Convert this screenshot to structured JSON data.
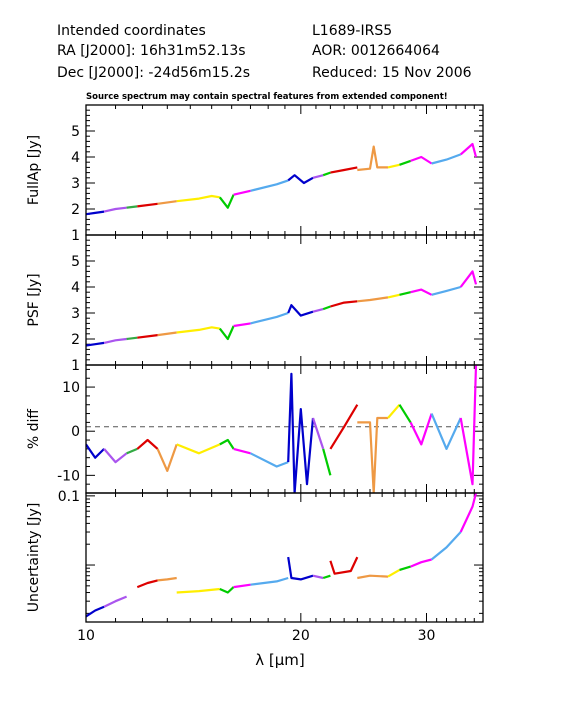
{
  "header": {
    "left": [
      "Intended coordinates",
      "RA  [J2000]: 16h31m52.13s",
      "Dec [J2000]: -24d56m15.2s"
    ],
    "right": [
      "L1689-IRS5",
      "AOR:  0012664064",
      "Reduced: 15 Nov 2006"
    ],
    "note": "Source spectrum may contain spectral features from extended component!"
  },
  "chart_data": [
    {
      "type": "line",
      "ylabel": "FullAp [Jy]",
      "xlim": [
        10,
        36
      ],
      "ylim": [
        1,
        6
      ],
      "yticks": [
        1,
        2,
        3,
        4,
        5
      ],
      "xscale": "log",
      "series": [
        {
          "color": "#0000cc",
          "x": [
            10.0,
            10.3,
            10.6
          ],
          "y": [
            1.8,
            1.85,
            1.9
          ]
        },
        {
          "color": "#aa55ee",
          "x": [
            10.6,
            11.0,
            11.4
          ],
          "y": [
            1.9,
            2.0,
            2.05
          ]
        },
        {
          "color": "#33aa44",
          "x": [
            11.4,
            11.8
          ],
          "y": [
            2.05,
            2.1
          ]
        },
        {
          "color": "#dd0000",
          "x": [
            11.8,
            12.6
          ],
          "y": [
            2.1,
            2.2
          ]
        },
        {
          "color": "#ee9944",
          "x": [
            12.6,
            13.4
          ],
          "y": [
            2.2,
            2.3
          ]
        },
        {
          "color": "#ffee00",
          "x": [
            13.4,
            14.4,
            15.0,
            15.4
          ],
          "y": [
            2.3,
            2.4,
            2.5,
            2.45
          ]
        },
        {
          "color": "#00cc00",
          "x": [
            15.4,
            15.8,
            16.1
          ],
          "y": [
            2.45,
            2.05,
            2.55
          ]
        },
        {
          "color": "#ff00ff",
          "x": [
            16.1,
            17.0
          ],
          "y": [
            2.55,
            2.7
          ]
        },
        {
          "color": "#55aaee",
          "x": [
            17.0,
            18.5,
            19.2
          ],
          "y": [
            2.7,
            2.95,
            3.1
          ]
        },
        {
          "color": "#0000cc",
          "x": [
            19.2,
            19.6,
            20.2,
            20.8
          ],
          "y": [
            3.1,
            3.3,
            3.0,
            3.2
          ]
        },
        {
          "color": "#aa55ee",
          "x": [
            20.8,
            21.5
          ],
          "y": [
            3.2,
            3.3
          ]
        },
        {
          "color": "#00cc00",
          "x": [
            21.5,
            22.0
          ],
          "y": [
            3.3,
            3.4
          ]
        },
        {
          "color": "#dd0000",
          "x": [
            22.0,
            23.0,
            24.0
          ],
          "y": [
            3.4,
            3.5,
            3.6
          ]
        },
        {
          "color": "#ee9944",
          "x": [
            24.0,
            25.0,
            25.3,
            25.6,
            26.5
          ],
          "y": [
            3.5,
            3.55,
            4.4,
            3.6,
            3.6
          ]
        },
        {
          "color": "#ffee00",
          "x": [
            26.5,
            27.5
          ],
          "y": [
            3.6,
            3.7
          ]
        },
        {
          "color": "#00cc00",
          "x": [
            27.5,
            28.5
          ],
          "y": [
            3.7,
            3.85
          ]
        },
        {
          "color": "#ff00ff",
          "x": [
            28.5,
            29.5,
            30.5
          ],
          "y": [
            3.85,
            4.0,
            3.75
          ]
        },
        {
          "color": "#55aaee",
          "x": [
            30.5,
            32.0,
            33.5
          ],
          "y": [
            3.75,
            3.9,
            4.1
          ]
        },
        {
          "color": "#ff00ff",
          "x": [
            33.5,
            34.8,
            35.2
          ],
          "y": [
            4.1,
            4.5,
            4.0
          ]
        }
      ]
    },
    {
      "type": "line",
      "ylabel": "PSF [Jy]",
      "xlim": [
        10,
        36
      ],
      "ylim": [
        1,
        6
      ],
      "yticks": [
        1,
        2,
        3,
        4,
        5
      ],
      "xscale": "log",
      "series": [
        {
          "color": "#0000cc",
          "x": [
            10.0,
            10.3,
            10.6
          ],
          "y": [
            1.75,
            1.8,
            1.85
          ]
        },
        {
          "color": "#aa55ee",
          "x": [
            10.6,
            11.0,
            11.4
          ],
          "y": [
            1.85,
            1.95,
            2.0
          ]
        },
        {
          "color": "#33aa44",
          "x": [
            11.4,
            11.8
          ],
          "y": [
            2.0,
            2.05
          ]
        },
        {
          "color": "#dd0000",
          "x": [
            11.8,
            12.6
          ],
          "y": [
            2.05,
            2.15
          ]
        },
        {
          "color": "#ee9944",
          "x": [
            12.6,
            13.4
          ],
          "y": [
            2.15,
            2.25
          ]
        },
        {
          "color": "#ffee00",
          "x": [
            13.4,
            14.4,
            15.0,
            15.4
          ],
          "y": [
            2.25,
            2.35,
            2.45,
            2.4
          ]
        },
        {
          "color": "#00cc00",
          "x": [
            15.4,
            15.8,
            16.1
          ],
          "y": [
            2.4,
            2.0,
            2.5
          ]
        },
        {
          "color": "#ff00ff",
          "x": [
            16.1,
            17.0
          ],
          "y": [
            2.5,
            2.6
          ]
        },
        {
          "color": "#55aaee",
          "x": [
            17.0,
            18.5,
            19.2
          ],
          "y": [
            2.6,
            2.85,
            3.0
          ]
        },
        {
          "color": "#0000cc",
          "x": [
            19.2,
            19.4,
            20.0,
            20.8
          ],
          "y": [
            3.0,
            3.3,
            2.9,
            3.05
          ]
        },
        {
          "color": "#aa55ee",
          "x": [
            20.8,
            21.5
          ],
          "y": [
            3.05,
            3.15
          ]
        },
        {
          "color": "#00cc00",
          "x": [
            21.5,
            22.0
          ],
          "y": [
            3.15,
            3.25
          ]
        },
        {
          "color": "#dd0000",
          "x": [
            22.0,
            23.0,
            24.0
          ],
          "y": [
            3.25,
            3.4,
            3.45
          ]
        },
        {
          "color": "#ee9944",
          "x": [
            24.0,
            25.0,
            26.5
          ],
          "y": [
            3.45,
            3.5,
            3.6
          ]
        },
        {
          "color": "#ffee00",
          "x": [
            26.5,
            27.5
          ],
          "y": [
            3.6,
            3.7
          ]
        },
        {
          "color": "#00cc00",
          "x": [
            27.5,
            28.5
          ],
          "y": [
            3.7,
            3.8
          ]
        },
        {
          "color": "#ff00ff",
          "x": [
            28.5,
            29.5,
            30.5
          ],
          "y": [
            3.8,
            3.9,
            3.7
          ]
        },
        {
          "color": "#55aaee",
          "x": [
            30.5,
            32.0,
            33.5
          ],
          "y": [
            3.7,
            3.85,
            4.0
          ]
        },
        {
          "color": "#ff00ff",
          "x": [
            33.5,
            34.8,
            35.2
          ],
          "y": [
            4.0,
            4.6,
            4.1
          ]
        }
      ]
    },
    {
      "type": "line",
      "ylabel": "% diff",
      "xlim": [
        10,
        36
      ],
      "ylim": [
        -14,
        15
      ],
      "yticks": [
        -10,
        0,
        10
      ],
      "xscale": "log",
      "reference_line": 1,
      "series": [
        {
          "color": "#0000cc",
          "x": [
            10.0,
            10.3,
            10.6
          ],
          "y": [
            -3,
            -6,
            -4
          ]
        },
        {
          "color": "#aa55ee",
          "x": [
            10.6,
            11.0,
            11.4
          ],
          "y": [
            -4,
            -7,
            -5
          ]
        },
        {
          "color": "#33aa44",
          "x": [
            11.4,
            11.8
          ],
          "y": [
            -5,
            -4
          ]
        },
        {
          "color": "#dd0000",
          "x": [
            11.8,
            12.2,
            12.6
          ],
          "y": [
            -4,
            -2,
            -4
          ]
        },
        {
          "color": "#ee9944",
          "x": [
            12.6,
            13.0,
            13.4
          ],
          "y": [
            -4,
            -9,
            -3
          ]
        },
        {
          "color": "#ffee00",
          "x": [
            13.4,
            14.4,
            15.4
          ],
          "y": [
            -3,
            -5,
            -3
          ]
        },
        {
          "color": "#00cc00",
          "x": [
            15.4,
            15.8,
            16.1
          ],
          "y": [
            -3,
            -2,
            -4
          ]
        },
        {
          "color": "#ff00ff",
          "x": [
            16.1,
            17.0
          ],
          "y": [
            -4,
            -5
          ]
        },
        {
          "color": "#55aaee",
          "x": [
            17.0,
            18.5,
            19.2
          ],
          "y": [
            -5,
            -8,
            -7
          ]
        },
        {
          "color": "#0000cc",
          "x": [
            19.2,
            19.4,
            19.6,
            20.0,
            20.4,
            20.8
          ],
          "y": [
            -7,
            13,
            -14,
            5,
            -12,
            3
          ]
        },
        {
          "color": "#aa55ee",
          "x": [
            20.8,
            21.5
          ],
          "y": [
            3,
            -4
          ]
        },
        {
          "color": "#00cc00",
          "x": [
            21.5,
            22.0
          ],
          "y": [
            -4,
            -10
          ]
        },
        {
          "color": "#dd0000",
          "x": [
            22.0,
            23.0,
            24.0
          ],
          "y": [
            -4,
            1,
            6
          ]
        },
        {
          "color": "#ee9944",
          "x": [
            24.0,
            25.0,
            25.3,
            25.6,
            26.5
          ],
          "y": [
            2,
            2,
            -14,
            3,
            3
          ]
        },
        {
          "color": "#ffee00",
          "x": [
            26.5,
            27.5
          ],
          "y": [
            3,
            6
          ]
        },
        {
          "color": "#00cc00",
          "x": [
            27.5,
            28.5
          ],
          "y": [
            6,
            2
          ]
        },
        {
          "color": "#ff00ff",
          "x": [
            28.5,
            29.5,
            30.5
          ],
          "y": [
            2,
            -3,
            4
          ]
        },
        {
          "color": "#55aaee",
          "x": [
            30.5,
            32.0,
            33.5
          ],
          "y": [
            4,
            -4,
            3
          ]
        },
        {
          "color": "#ff00ff",
          "x": [
            33.5,
            34.8,
            35.2
          ],
          "y": [
            3,
            -12,
            15
          ]
        }
      ]
    },
    {
      "type": "line",
      "ylabel": "Uncertainty [Jy]",
      "xlim": [
        10,
        36
      ],
      "ylim": [
        0.0015,
        0.11
      ],
      "yticks": [
        0.1
      ],
      "xscale": "log",
      "yscale": "log",
      "series": [
        {
          "color": "#0000cc",
          "x": [
            10.0,
            10.3,
            10.6
          ],
          "y": [
            0.0018,
            0.0022,
            0.0025
          ]
        },
        {
          "color": "#aa55ee",
          "x": [
            10.6,
            11.0,
            11.4
          ],
          "y": [
            0.0025,
            0.003,
            0.0035
          ]
        },
        {
          "color": "#dd0000",
          "x": [
            11.8,
            12.2,
            12.6
          ],
          "y": [
            0.0048,
            0.0055,
            0.006
          ]
        },
        {
          "color": "#ee9944",
          "x": [
            12.6,
            13.0,
            13.4
          ],
          "y": [
            0.006,
            0.0062,
            0.0065
          ]
        },
        {
          "color": "#ffee00",
          "x": [
            13.4,
            14.4,
            15.4
          ],
          "y": [
            0.004,
            0.0042,
            0.0045
          ]
        },
        {
          "color": "#00cc00",
          "x": [
            15.4,
            15.8,
            16.1
          ],
          "y": [
            0.0045,
            0.004,
            0.0048
          ]
        },
        {
          "color": "#ff00ff",
          "x": [
            16.1,
            17.0
          ],
          "y": [
            0.0048,
            0.0052
          ]
        },
        {
          "color": "#55aaee",
          "x": [
            17.0,
            18.5,
            19.2
          ],
          "y": [
            0.0052,
            0.0058,
            0.0065
          ]
        },
        {
          "color": "#0000cc",
          "x": [
            19.2,
            19.4,
            20.0,
            20.8
          ],
          "y": [
            0.013,
            0.0065,
            0.0062,
            0.007
          ]
        },
        {
          "color": "#aa55ee",
          "x": [
            20.8,
            21.5
          ],
          "y": [
            0.007,
            0.0065
          ]
        },
        {
          "color": "#00cc00",
          "x": [
            21.5,
            22.0
          ],
          "y": [
            0.0065,
            0.007
          ]
        },
        {
          "color": "#dd0000",
          "x": [
            22.0,
            22.3,
            23.5,
            24.0
          ],
          "y": [
            0.0115,
            0.0075,
            0.0082,
            0.013
          ]
        },
        {
          "color": "#ee9944",
          "x": [
            24.0,
            25.0,
            26.5
          ],
          "y": [
            0.0065,
            0.007,
            0.0068
          ]
        },
        {
          "color": "#ffee00",
          "x": [
            26.5,
            27.5
          ],
          "y": [
            0.0068,
            0.0085
          ]
        },
        {
          "color": "#00cc00",
          "x": [
            27.5,
            28.5
          ],
          "y": [
            0.0085,
            0.0095
          ]
        },
        {
          "color": "#ff00ff",
          "x": [
            28.5,
            29.5,
            30.5
          ],
          "y": [
            0.0095,
            0.011,
            0.012
          ]
        },
        {
          "color": "#55aaee",
          "x": [
            30.5,
            32.0,
            33.5
          ],
          "y": [
            0.012,
            0.018,
            0.03
          ]
        },
        {
          "color": "#ff00ff",
          "x": [
            33.5,
            34.8,
            35.2
          ],
          "y": [
            0.03,
            0.07,
            0.11
          ]
        }
      ]
    }
  ],
  "x_axis": {
    "label": "λ [μm]",
    "ticks": [
      10,
      20,
      30
    ],
    "tick_labels": [
      "10",
      "20",
      "30"
    ]
  }
}
